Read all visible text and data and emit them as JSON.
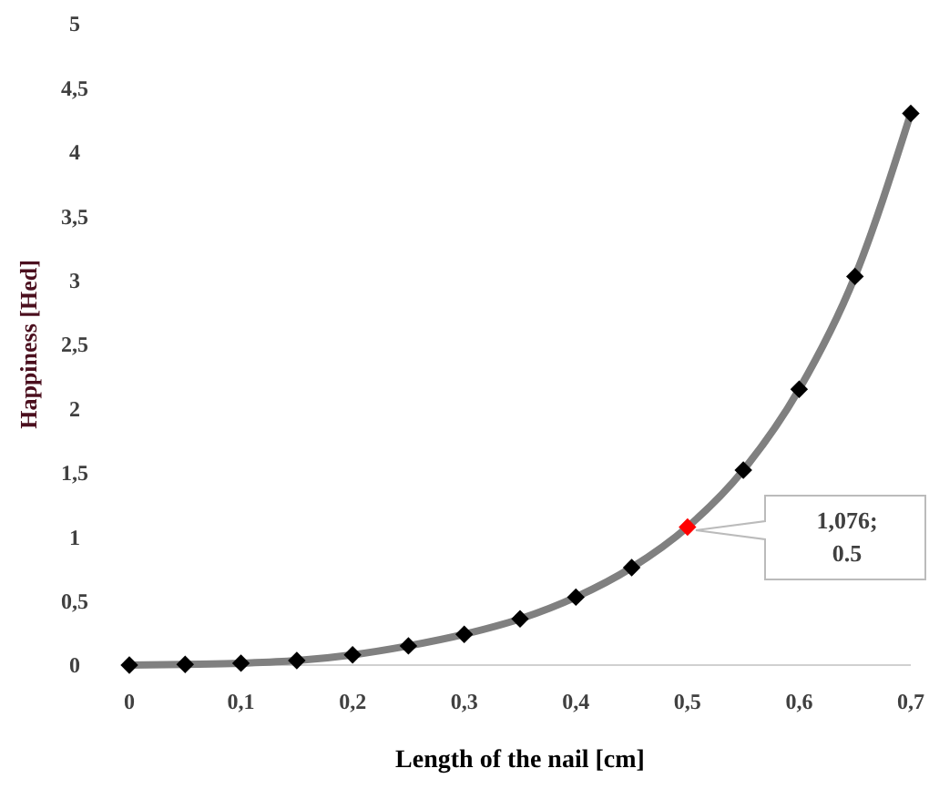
{
  "chart_data": {
    "type": "line",
    "xlabel": "Length of the nail [cm]",
    "ylabel": "Happiness [Hed]",
    "x": [
      0,
      0.05,
      0.1,
      0.15,
      0.2,
      0.25,
      0.3,
      0.35,
      0.4,
      0.45,
      0.5,
      0.55,
      0.6,
      0.65,
      0.7
    ],
    "series": [
      {
        "color": "#808080",
        "values": [
          0,
          0.005,
          0.015,
          0.035,
          0.08,
          0.15,
          0.24,
          0.36,
          0.53,
          0.76,
          1.076,
          1.52,
          2.15,
          3.03,
          4.3
        ],
        "colors": [
          "#000000",
          "#000000",
          "#000000",
          "#000000",
          "#000000",
          "#000000",
          "#000000",
          "#000000",
          "#000000",
          "#000000",
          "#ff0000",
          "#000000",
          "#000000",
          "#000000",
          "#000000"
        ]
      }
    ],
    "marker": "diamond",
    "grid": false,
    "xlim": [
      0,
      0.7
    ],
    "xticks": [
      0,
      {
        "value": 0.1,
        "label": "0,1"
      },
      {
        "value": 0.2,
        "label": "0,2"
      },
      {
        "value": 0.3,
        "label": "0,3"
      },
      {
        "value": 0.4,
        "label": "0,4"
      },
      {
        "value": 0.5,
        "label": "0,5"
      },
      {
        "value": 0.6,
        "label": "0,6"
      },
      {
        "value": 0.7,
        "label": "0,7"
      }
    ],
    "ylim": [
      0,
      5
    ],
    "yticks": [
      0,
      {
        "value": 0.5,
        "label": "0,5"
      },
      1,
      {
        "value": 1.5,
        "label": "1,5"
      },
      2,
      {
        "value": 2.5,
        "label": "2,5"
      },
      3,
      {
        "value": 3.5,
        "label": "3,5"
      },
      4,
      {
        "value": 4.5,
        "label": "4,5"
      },
      5
    ],
    "annotations": [
      "1,076;\n0.5"
    ]
  }
}
